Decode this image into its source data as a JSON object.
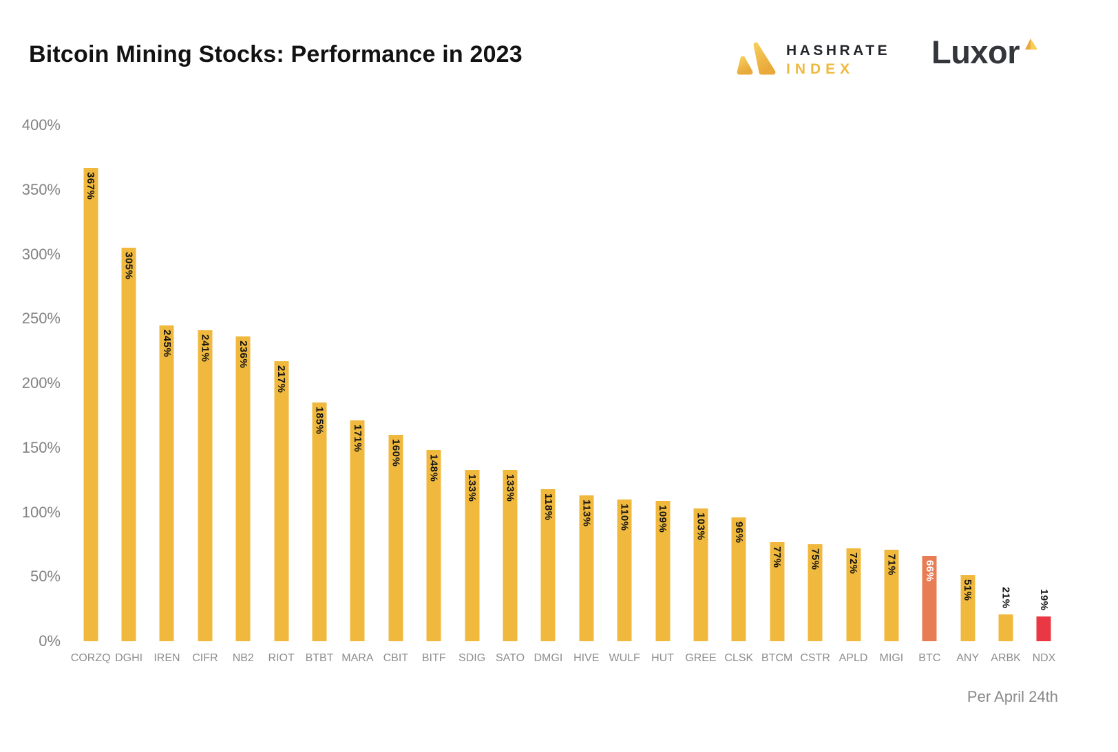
{
  "header": {
    "title": "Bitcoin Mining Stocks: Performance in 2023",
    "hashrate_index_logo": {
      "line1": "HASHRATE",
      "line2": "INDEX",
      "icon": "hashrate-triangles-icon",
      "accent_color": "#EFB93D",
      "text_color": "#23262B"
    },
    "luxor_logo": {
      "text": "Luxor",
      "icon": "luxor-triangle-icon",
      "text_color": "#33363B",
      "accent_color": "#EFB93D"
    }
  },
  "footer": {
    "note": "Per April 24th"
  },
  "chart_data": {
    "type": "bar",
    "title": "Bitcoin Mining Stocks: Performance in 2023",
    "xlabel": "",
    "ylabel": "",
    "unit": "%",
    "ylim": [
      0,
      400
    ],
    "y_ticks": [
      "400%",
      "350%",
      "300%",
      "250%",
      "200%",
      "150%",
      "100%",
      "50%",
      "0%"
    ],
    "grid": false,
    "legend": false,
    "bar_color_default": "#F0B93E",
    "bar_color_btc": "#E87D55",
    "bar_color_ndx": "#E93844",
    "points": [
      {
        "category": "CORZQ",
        "value": 367,
        "label": "367%",
        "color": "#F0B93E",
        "label_color": "#121212",
        "label_position": "inside"
      },
      {
        "category": "DGHI",
        "value": 305,
        "label": "305%",
        "color": "#F0B93E",
        "label_color": "#121212",
        "label_position": "inside"
      },
      {
        "category": "IREN",
        "value": 245,
        "label": "245%",
        "color": "#F0B93E",
        "label_color": "#121212",
        "label_position": "inside"
      },
      {
        "category": "CIFR",
        "value": 241,
        "label": "241%",
        "color": "#F0B93E",
        "label_color": "#121212",
        "label_position": "inside"
      },
      {
        "category": "NB2",
        "value": 236,
        "label": "236%",
        "color": "#F0B93E",
        "label_color": "#121212",
        "label_position": "inside"
      },
      {
        "category": "RIOT",
        "value": 217,
        "label": "217%",
        "color": "#F0B93E",
        "label_color": "#121212",
        "label_position": "inside"
      },
      {
        "category": "BTBT",
        "value": 185,
        "label": "185%",
        "color": "#F0B93E",
        "label_color": "#121212",
        "label_position": "inside"
      },
      {
        "category": "MARA",
        "value": 171,
        "label": "171%",
        "color": "#F0B93E",
        "label_color": "#121212",
        "label_position": "inside"
      },
      {
        "category": "CBIT",
        "value": 160,
        "label": "160%",
        "color": "#F0B93E",
        "label_color": "#121212",
        "label_position": "inside"
      },
      {
        "category": "BITF",
        "value": 148,
        "label": "148%",
        "color": "#F0B93E",
        "label_color": "#121212",
        "label_position": "inside"
      },
      {
        "category": "SDIG",
        "value": 133,
        "label": "133%",
        "color": "#F0B93E",
        "label_color": "#121212",
        "label_position": "inside"
      },
      {
        "category": "SATO",
        "value": 133,
        "label": "133%",
        "color": "#F0B93E",
        "label_color": "#121212",
        "label_position": "inside"
      },
      {
        "category": "DMGI",
        "value": 118,
        "label": "118%",
        "color": "#F0B93E",
        "label_color": "#121212",
        "label_position": "inside"
      },
      {
        "category": "HIVE",
        "value": 113,
        "label": "113%",
        "color": "#F0B93E",
        "label_color": "#121212",
        "label_position": "inside"
      },
      {
        "category": "WULF",
        "value": 110,
        "label": "110%",
        "color": "#F0B93E",
        "label_color": "#121212",
        "label_position": "inside"
      },
      {
        "category": "HUT",
        "value": 109,
        "label": "109%",
        "color": "#F0B93E",
        "label_color": "#121212",
        "label_position": "inside"
      },
      {
        "category": "GREE",
        "value": 103,
        "label": "103%",
        "color": "#F0B93E",
        "label_color": "#121212",
        "label_position": "inside"
      },
      {
        "category": "CLSK",
        "value": 96,
        "label": "96%",
        "color": "#F0B93E",
        "label_color": "#121212",
        "label_position": "inside"
      },
      {
        "category": "BTCM",
        "value": 77,
        "label": "77%",
        "color": "#F0B93E",
        "label_color": "#121212",
        "label_position": "inside"
      },
      {
        "category": "CSTR",
        "value": 75,
        "label": "75%",
        "color": "#F0B93E",
        "label_color": "#121212",
        "label_position": "inside"
      },
      {
        "category": "APLD",
        "value": 72,
        "label": "72%",
        "color": "#F0B93E",
        "label_color": "#121212",
        "label_position": "inside"
      },
      {
        "category": "MIGI",
        "value": 71,
        "label": "71%",
        "color": "#F0B93E",
        "label_color": "#121212",
        "label_position": "inside"
      },
      {
        "category": "BTC",
        "value": 66,
        "label": "66%",
        "color": "#E87D55",
        "label_color": "#FFFFFF",
        "label_position": "inside"
      },
      {
        "category": "ANY",
        "value": 51,
        "label": "51%",
        "color": "#F0B93E",
        "label_color": "#121212",
        "label_position": "inside"
      },
      {
        "category": "ARBK",
        "value": 21,
        "label": "21%",
        "color": "#F0B93E",
        "label_color": "#121212",
        "label_position": "outside"
      },
      {
        "category": "NDX",
        "value": 19,
        "label": "19%",
        "color": "#E93844",
        "label_color": "#121212",
        "label_position": "outside"
      }
    ]
  }
}
